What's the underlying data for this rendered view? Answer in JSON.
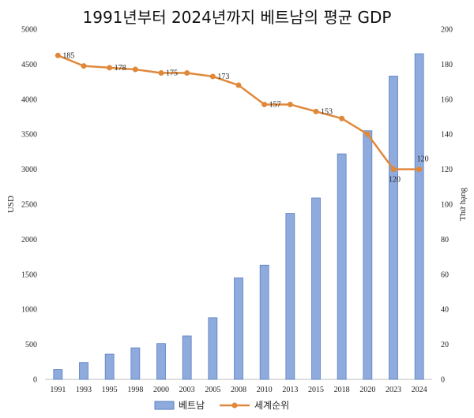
{
  "chart_data": {
    "type": "bar+line",
    "title": "1991년부터 2024년까지 베트남의 평균 GDP",
    "categories": [
      "1991",
      "1993",
      "1995",
      "1998",
      "2000",
      "2003",
      "2005",
      "2008",
      "2010",
      "2013",
      "2015",
      "2018",
      "2020",
      "2023",
      "2024"
    ],
    "series": [
      {
        "name": "베트남",
        "type": "bar",
        "axis": "left",
        "color": "#8faadc",
        "values": [
          140,
          240,
          360,
          450,
          510,
          620,
          880,
          1450,
          1630,
          2370,
          2590,
          3220,
          3550,
          4330,
          4650
        ]
      },
      {
        "name": "세계순위",
        "type": "line",
        "axis": "right",
        "color": "#e0883a",
        "values": [
          185,
          179,
          178,
          177,
          175,
          175,
          173,
          168,
          157,
          157,
          153,
          149,
          140,
          120,
          120
        ]
      }
    ],
    "point_labels": [
      {
        "index": 0,
        "text": "185"
      },
      {
        "index": 2,
        "text": "178"
      },
      {
        "index": 4,
        "text": "175"
      },
      {
        "index": 6,
        "text": "173"
      },
      {
        "index": 8,
        "text": "157"
      },
      {
        "index": 10,
        "text": "153"
      },
      {
        "index": 13,
        "text": "120"
      },
      {
        "index": 14,
        "text": "120"
      }
    ],
    "ylabel_left": "USD",
    "ylabel_right": "Thứ hạng",
    "ylim_left": [
      0,
      5000
    ],
    "ylim_right": [
      0,
      200
    ],
    "yticks_left": [
      "0",
      "500",
      "1000",
      "1500",
      "2000",
      "2500",
      "3000",
      "3500",
      "4000",
      "4500",
      "5000"
    ],
    "yticks_right": [
      "0",
      "20",
      "40",
      "60",
      "80",
      "100",
      "120",
      "140",
      "160",
      "180",
      "200"
    ],
    "grid": false,
    "legend_position": "bottom"
  }
}
